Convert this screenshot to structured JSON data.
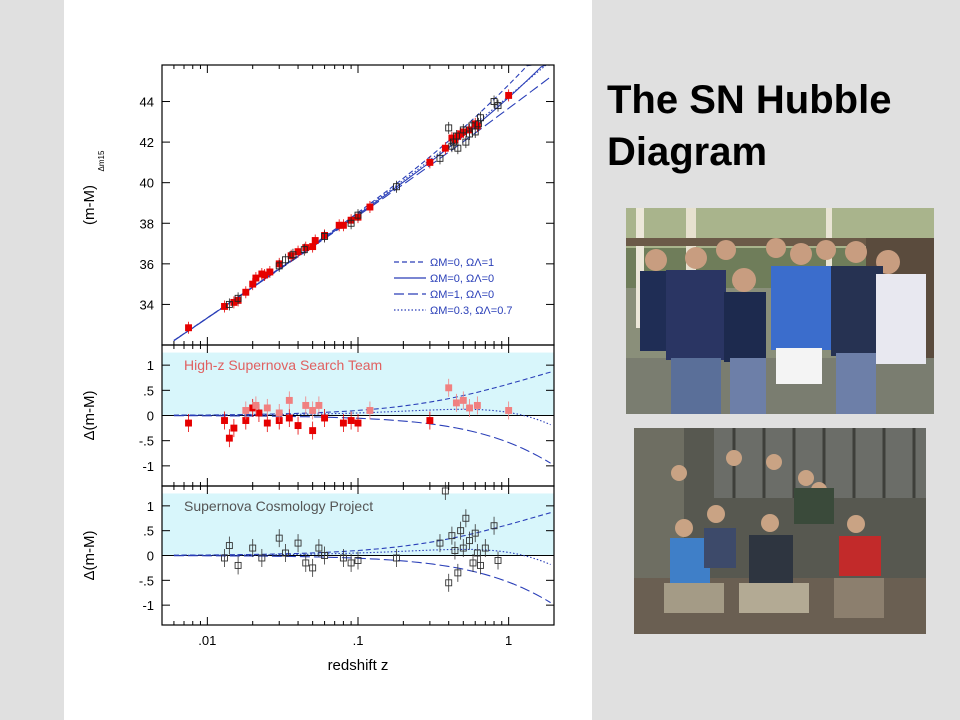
{
  "slide": {
    "title": "The SN Hubble Diagram"
  },
  "colors": {
    "high_z_red": "#e60000",
    "scp_gray": "#222222",
    "residual_band": "#d8f6fb",
    "model_lines": "#2a3fb8"
  },
  "photos": [
    {
      "name": "High-z Supernova Search Team photo"
    },
    {
      "name": "Supernova Cosmology Project photo"
    }
  ],
  "chart_data": [
    {
      "type": "scatter",
      "panel": "hubble",
      "xlabel": "redshift z",
      "ylabel": "(m-M)",
      "ylabel_sub": "Δm15",
      "x_scale": "log",
      "xlim": [
        0.005,
        2
      ],
      "ylim": [
        32.0,
        45.8
      ],
      "x_ticks": [
        0.01,
        0.1,
        1
      ],
      "x_tick_labels": [
        ".01",
        ".1",
        "1"
      ],
      "y_ticks": [
        34,
        36,
        38,
        40,
        42,
        44
      ],
      "y_tick_labels": [
        "34",
        "36",
        "38",
        "40",
        "42",
        "44"
      ],
      "legend_position": "bottom-right",
      "legend": [
        {
          "label": "ΩM=0, ΩΛ=1",
          "style": "dashed-short"
        },
        {
          "label": "ΩM=0, ΩΛ=0",
          "style": "solid"
        },
        {
          "label": "ΩM=1, ΩΛ=0",
          "style": "dashed-long"
        },
        {
          "label": "ΩM=0.3, ΩΛ=0.7",
          "style": "dotted"
        }
      ],
      "series": [
        {
          "marker": "filled-square",
          "color": "#e60000",
          "points": [
            [
              0.0075,
              32.85
            ],
            [
              0.013,
              33.9
            ],
            [
              0.015,
              34.1
            ],
            [
              0.016,
              34.2
            ],
            [
              0.018,
              34.6
            ],
            [
              0.02,
              35.0
            ],
            [
              0.021,
              35.3
            ],
            [
              0.023,
              35.5
            ],
            [
              0.024,
              35.45
            ],
            [
              0.026,
              35.6
            ],
            [
              0.03,
              36.0
            ],
            [
              0.036,
              36.4
            ],
            [
              0.04,
              36.6
            ],
            [
              0.045,
              36.8
            ],
            [
              0.05,
              36.85
            ],
            [
              0.052,
              37.15
            ],
            [
              0.06,
              37.4
            ],
            [
              0.075,
              37.9
            ],
            [
              0.08,
              37.9
            ],
            [
              0.09,
              38.15
            ],
            [
              0.1,
              38.3
            ],
            [
              0.12,
              38.8
            ],
            [
              0.3,
              41.0
            ],
            [
              0.38,
              41.7
            ],
            [
              0.42,
              42.2
            ],
            [
              0.44,
              42.1
            ],
            [
              0.46,
              42.3
            ],
            [
              0.48,
              42.4
            ],
            [
              0.5,
              42.5
            ],
            [
              0.55,
              42.6
            ],
            [
              0.6,
              42.9
            ],
            [
              0.62,
              42.8
            ],
            [
              1.0,
              44.3
            ]
          ]
        },
        {
          "marker": "open-square",
          "color": "#222222",
          "points": [
            [
              0.014,
              34.0
            ],
            [
              0.016,
              34.3
            ],
            [
              0.03,
              35.9
            ],
            [
              0.033,
              36.2
            ],
            [
              0.037,
              36.45
            ],
            [
              0.044,
              36.7
            ],
            [
              0.06,
              37.35
            ],
            [
              0.09,
              38.0
            ],
            [
              0.1,
              38.4
            ],
            [
              0.18,
              39.8
            ],
            [
              0.35,
              41.2
            ],
            [
              0.4,
              42.7
            ],
            [
              0.42,
              41.8
            ],
            [
              0.43,
              42.0
            ],
            [
              0.45,
              42.3
            ],
            [
              0.46,
              41.7
            ],
            [
              0.5,
              42.6
            ],
            [
              0.52,
              42.0
            ],
            [
              0.55,
              42.4
            ],
            [
              0.57,
              42.8
            ],
            [
              0.6,
              42.5
            ],
            [
              0.63,
              42.9
            ],
            [
              0.65,
              43.2
            ],
            [
              0.8,
              44.0
            ],
            [
              0.85,
              43.8
            ]
          ]
        }
      ]
    },
    {
      "type": "scatter",
      "panel": "residual-highz",
      "annotation": "High-z Supernova Search Team",
      "ylabel": "Δ(m-M)",
      "x_scale": "log",
      "xlim": [
        0.005,
        2
      ],
      "ylim": [
        -1.4,
        1.4
      ],
      "y_ticks": [
        1,
        0.5,
        0,
        -0.5,
        -1
      ],
      "y_tick_labels": [
        "1",
        ".5",
        "0",
        "-.5",
        "-1"
      ],
      "series": [
        {
          "marker": "filled-square",
          "color": "#e60000",
          "points": [
            [
              0.0075,
              -0.15
            ],
            [
              0.013,
              -0.1
            ],
            [
              0.014,
              -0.45
            ],
            [
              0.015,
              -0.25
            ],
            [
              0.018,
              -0.1
            ],
            [
              0.02,
              0.15
            ],
            [
              0.022,
              0.05
            ],
            [
              0.025,
              -0.15
            ],
            [
              0.03,
              -0.1
            ],
            [
              0.035,
              -0.05
            ],
            [
              0.04,
              -0.2
            ],
            [
              0.05,
              -0.3
            ],
            [
              0.06,
              -0.05
            ],
            [
              0.08,
              -0.15
            ],
            [
              0.09,
              -0.1
            ],
            [
              0.1,
              -0.15
            ],
            [
              0.3,
              -0.1
            ]
          ]
        },
        {
          "marker": "filled-square-light",
          "color": "#f08080",
          "points": [
            [
              0.018,
              0.1
            ],
            [
              0.021,
              0.2
            ],
            [
              0.025,
              0.15
            ],
            [
              0.03,
              0.05
            ],
            [
              0.035,
              0.3
            ],
            [
              0.045,
              0.2
            ],
            [
              0.05,
              0.1
            ],
            [
              0.055,
              0.2
            ],
            [
              0.12,
              0.1
            ],
            [
              0.4,
              0.55
            ],
            [
              0.45,
              0.25
            ],
            [
              0.5,
              0.3
            ],
            [
              0.55,
              0.15
            ],
            [
              0.62,
              0.2
            ],
            [
              1.0,
              0.1
            ]
          ]
        }
      ]
    },
    {
      "type": "scatter",
      "panel": "residual-scp",
      "annotation": "Supernova Cosmology Project",
      "xlabel": "redshift z",
      "ylabel": "Δ(m-M)",
      "x_scale": "log",
      "xlim": [
        0.005,
        2
      ],
      "ylim": [
        -1.4,
        1.4
      ],
      "x_ticks": [
        0.01,
        0.1,
        1
      ],
      "x_tick_labels": [
        ".01",
        ".1",
        "1"
      ],
      "y_ticks": [
        1,
        0.5,
        0,
        -0.5,
        -1
      ],
      "y_tick_labels": [
        "1",
        ".5",
        "0",
        "-.5",
        "-1"
      ],
      "series": [
        {
          "marker": "open-square",
          "color": "#333333",
          "points": [
            [
              0.013,
              -0.05
            ],
            [
              0.014,
              0.2
            ],
            [
              0.016,
              -0.2
            ],
            [
              0.02,
              0.15
            ],
            [
              0.023,
              -0.05
            ],
            [
              0.03,
              0.35
            ],
            [
              0.033,
              0.05
            ],
            [
              0.04,
              0.25
            ],
            [
              0.045,
              -0.15
            ],
            [
              0.05,
              -0.25
            ],
            [
              0.055,
              0.15
            ],
            [
              0.06,
              0.0
            ],
            [
              0.08,
              -0.05
            ],
            [
              0.09,
              -0.15
            ],
            [
              0.1,
              -0.1
            ],
            [
              0.18,
              -0.05
            ],
            [
              0.35,
              0.25
            ],
            [
              0.38,
              1.3
            ],
            [
              0.4,
              -0.55
            ],
            [
              0.42,
              0.4
            ],
            [
              0.44,
              0.1
            ],
            [
              0.46,
              -0.35
            ],
            [
              0.48,
              0.5
            ],
            [
              0.5,
              0.15
            ],
            [
              0.52,
              0.75
            ],
            [
              0.55,
              0.3
            ],
            [
              0.58,
              -0.15
            ],
            [
              0.6,
              0.45
            ],
            [
              0.62,
              0.05
            ],
            [
              0.65,
              -0.2
            ],
            [
              0.7,
              0.15
            ],
            [
              0.8,
              0.6
            ],
            [
              0.85,
              -0.1
            ]
          ]
        }
      ]
    }
  ]
}
